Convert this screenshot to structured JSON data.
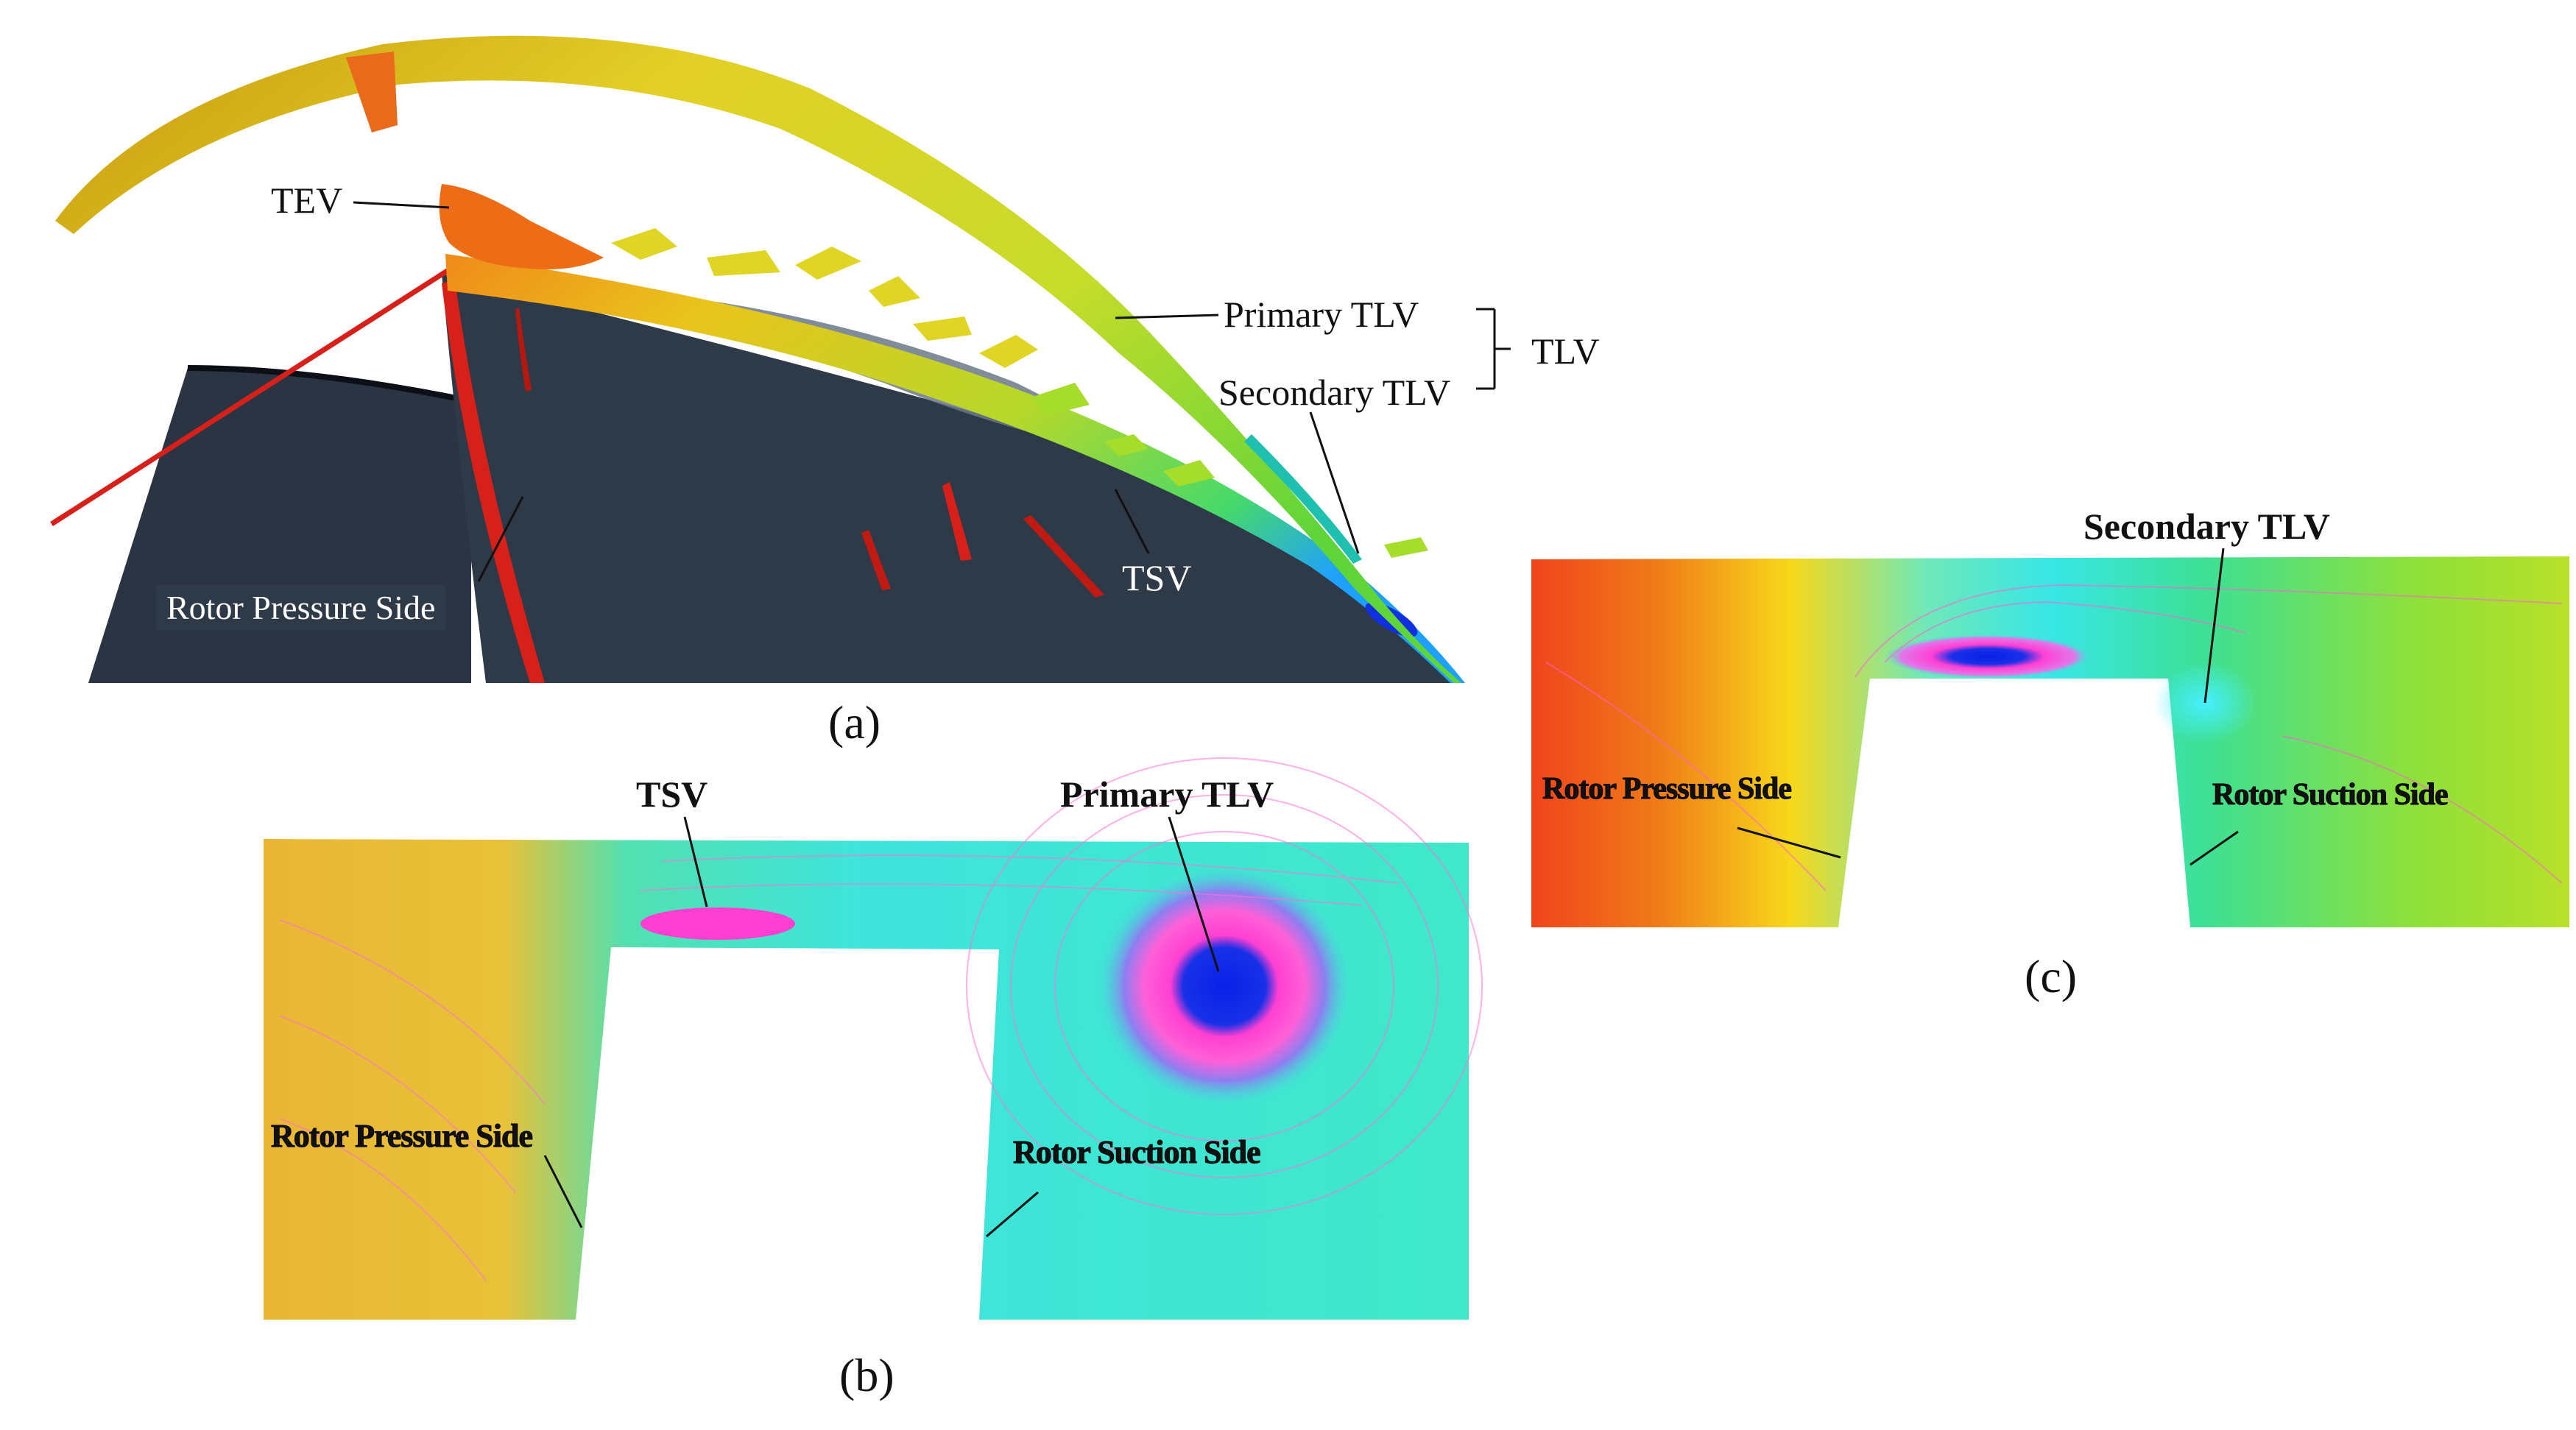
{
  "panel_a": {
    "caption": "(a)",
    "labels": {
      "tev": "TEV",
      "primary_tlv": "Primary TLV",
      "secondary_tlv": "Secondary TLV",
      "tlv": "TLV",
      "tsv": "TSV",
      "rotor_pressure_side": "Rotor Pressure Side"
    }
  },
  "panel_b": {
    "caption": "(b)",
    "labels": {
      "tsv": "TSV",
      "primary_tlv": "Primary TLV",
      "rotor_pressure_side": "Rotor Pressure Side",
      "rotor_suction_side": "Rotor Suction Side"
    }
  },
  "panel_c": {
    "caption": "(c)",
    "labels": {
      "secondary_tlv": "Secondary TLV",
      "rotor_pressure_side": "Rotor Pressure Side",
      "rotor_suction_side": "Rotor Suction Side"
    }
  },
  "colors": {
    "blade": "#2e3a48",
    "vortex_yellow": "#d9c21c",
    "vortex_green": "#7fd22a",
    "vortex_red": "#d8201a",
    "vortex_orange": "#ef7a18",
    "core_blue": "#1030e0",
    "core_magenta": "#ff40d0",
    "field_cyan": "#3ee6d8",
    "field_orange": "#f0b830"
  }
}
